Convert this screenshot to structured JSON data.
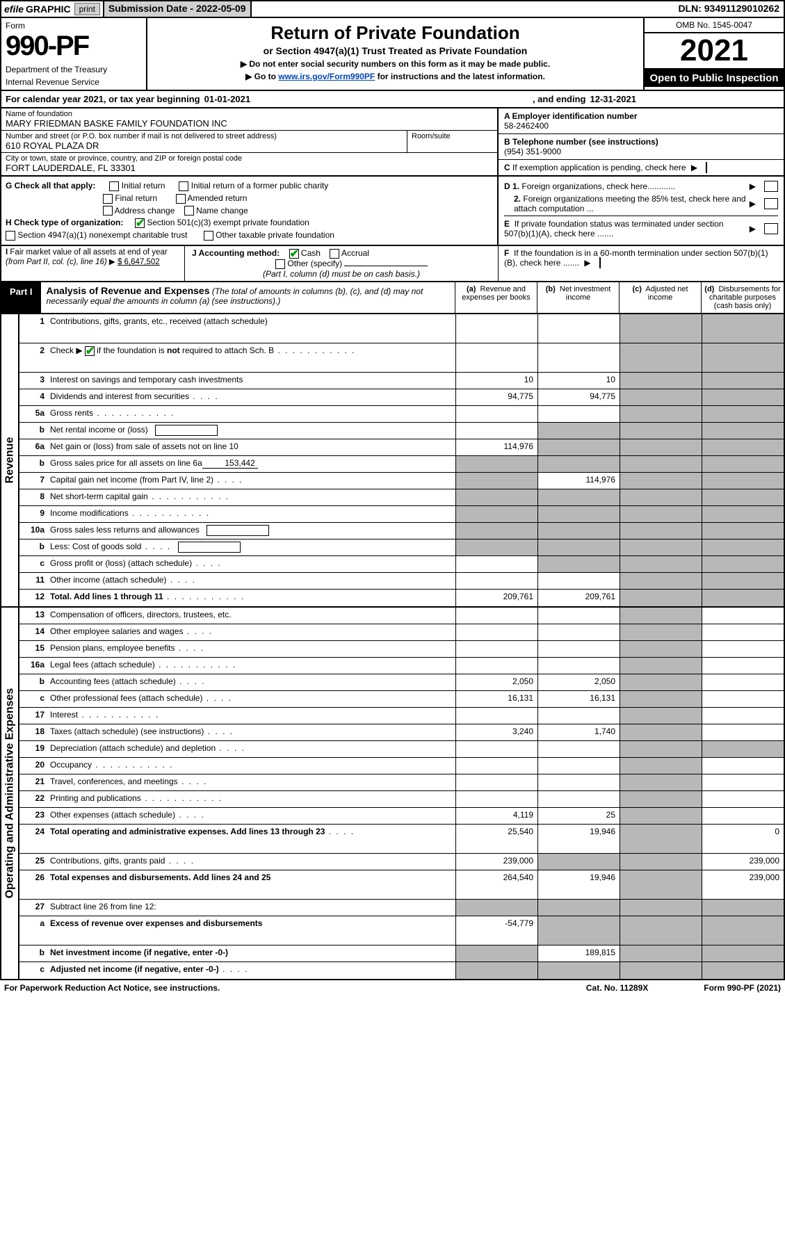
{
  "topbar": {
    "efile_label": "efile",
    "graphic_label": "GRAPHIC",
    "print_label": "print",
    "submission_label": "Submission Date - 2022-05-09",
    "dln": "DLN: 93491129010262"
  },
  "header": {
    "form_word": "Form",
    "form_number": "990-PF",
    "department": "Department of the Treasury",
    "irs_line": "Internal Revenue Service",
    "title_main": "Return of Private Foundation",
    "title_sub": "or Section 4947(a)(1) Trust Treated as Private Foundation",
    "instr1": "▶ Do not enter social security numbers on this form as it may be made public.",
    "instr2_pre": "▶ Go to ",
    "instr2_link": "www.irs.gov/Form990PF",
    "instr2_post": " for instructions and the latest information.",
    "omb": "OMB No. 1545-0047",
    "tax_year": "2021",
    "open_public": "Open to Public Inspection"
  },
  "calendar": {
    "prefix": "For calendar year 2021, or tax year beginning",
    "begin": "01-01-2021",
    "mid": ", and ending",
    "end": "12-31-2021"
  },
  "address": {
    "name_label": "Name of foundation",
    "name": "MARY FRIEDMAN BASKE FAMILY FOUNDATION INC",
    "street_label": "Number and street (or P.O. box number if mail is not delivered to street address)",
    "street": "610 ROYAL PLAZA DR",
    "room_label": "Room/suite",
    "city_label": "City or town, state or province, country, and ZIP or foreign postal code",
    "city": "FORT LAUDERDALE, FL  33301",
    "a_label": "A Employer identification number",
    "a_value": "58-2462400",
    "b_label": "B Telephone number (see instructions)",
    "b_value": "(954) 351-9000",
    "c_label": "C If exemption application is pending, check here"
  },
  "section_g": {
    "g_label": "G Check all that apply:",
    "g_opts": [
      "Initial return",
      "Initial return of a former public charity",
      "Final return",
      "Amended return",
      "Address change",
      "Name change"
    ],
    "h_label": "H Check type of organization:",
    "h_opt1": "Section 501(c)(3) exempt private foundation",
    "h_opt2": "Section 4947(a)(1) nonexempt charitable trust",
    "h_opt3": "Other taxable private foundation",
    "i_label": "I Fair market value of all assets at end of year (from Part II, col. (c), line 16) ▶",
    "i_value": "$  6,647,502",
    "j_label": "J Accounting method:",
    "j_opt1": "Cash",
    "j_opt2": "Accrual",
    "j_opt3": "Other (specify)",
    "j_note": "(Part I, column (d) must be on cash basis.)",
    "d1_label": "D 1. Foreign organizations, check here............",
    "d2_label": "2. Foreign organizations meeting the 85% test, check here and attach computation ...",
    "e_label": "E  If private foundation status was terminated under section 507(b)(1)(A), check here .......",
    "f_label": "F  If the foundation is in a 60-month termination under section 507(b)(1)(B), check here ......."
  },
  "part1": {
    "tag": "Part I",
    "title": "Analysis of Revenue and Expenses",
    "subtitle": " (The total of amounts in columns (b), (c), and (d) may not necessarily equal the amounts in column (a) (see instructions).)",
    "col_a": "(a)  Revenue and expenses per books",
    "col_b": "(b)  Net investment income",
    "col_c": "(c)  Adjusted net income",
    "col_d": "(d)  Disbursements for charitable purposes (cash basis only)"
  },
  "side_labels": {
    "revenue": "Revenue",
    "expenses": "Operating and Administrative Expenses"
  },
  "rows_revenue": [
    {
      "n": "1",
      "d": "Contributions, gifts, grants, etc., received (attach schedule)",
      "tall": true
    },
    {
      "n": "2",
      "d": "Check ▶ ☑ if the foundation is not required to attach Sch. B",
      "dots": true,
      "tall": true,
      "checkgreen": true,
      "notbold": true
    },
    {
      "n": "3",
      "d": "Interest on savings and temporary cash investments",
      "a": "10",
      "b": "10"
    },
    {
      "n": "4",
      "d": "Dividends and interest from securities",
      "dots": "short",
      "a": "94,775",
      "b": "94,775"
    },
    {
      "n": "5a",
      "d": "Gross rents",
      "dots": true
    },
    {
      "n": "b",
      "d": "Net rental income or (loss)",
      "input": true,
      "shade_bcd": true
    },
    {
      "n": "6a",
      "d": "Net gain or (loss) from sale of assets not on line 10",
      "a": "114,976",
      "shade_bcd": true
    },
    {
      "n": "b",
      "d": "Gross sales price for all assets on line 6a",
      "inline_val": "153,442",
      "shade_all": true
    },
    {
      "n": "7",
      "d": "Capital gain net income (from Part IV, line 2)",
      "dots": "short",
      "b": "114,976",
      "shade_a": true
    },
    {
      "n": "8",
      "d": "Net short-term capital gain",
      "dots": true,
      "shade_ab": true
    },
    {
      "n": "9",
      "d": "Income modifications",
      "dots": true,
      "shade_ab": true
    },
    {
      "n": "10a",
      "d": "Gross sales less returns and allowances",
      "input": true,
      "shade_all": true
    },
    {
      "n": "b",
      "d": "Less: Cost of goods sold",
      "dots": "short",
      "input": true,
      "shade_all": true
    },
    {
      "n": "c",
      "d": "Gross profit or (loss) (attach schedule)",
      "dots": "short",
      "shade_bc": true
    },
    {
      "n": "11",
      "d": "Other income (attach schedule)",
      "dots": "short"
    },
    {
      "n": "12",
      "d": "Total. Add lines 1 through 11",
      "dots": true,
      "bold": true,
      "a": "209,761",
      "b": "209,761"
    }
  ],
  "rows_expenses": [
    {
      "n": "13",
      "d": "Compensation of officers, directors, trustees, etc."
    },
    {
      "n": "14",
      "d": "Other employee salaries and wages",
      "dots": "short"
    },
    {
      "n": "15",
      "d": "Pension plans, employee benefits",
      "dots": "short"
    },
    {
      "n": "16a",
      "d": "Legal fees (attach schedule)",
      "dots": true
    },
    {
      "n": "b",
      "d": "Accounting fees (attach schedule)",
      "dots": "short",
      "a": "2,050",
      "b": "2,050"
    },
    {
      "n": "c",
      "d": "Other professional fees (attach schedule)",
      "dots": "short",
      "a": "16,131",
      "b": "16,131"
    },
    {
      "n": "17",
      "d": "Interest",
      "dots": true
    },
    {
      "n": "18",
      "d": "Taxes (attach schedule) (see instructions)",
      "dots": "short",
      "a": "3,240",
      "b": "1,740"
    },
    {
      "n": "19",
      "d": "Depreciation (attach schedule) and depletion",
      "dots": "short",
      "shade_d": true
    },
    {
      "n": "20",
      "d": "Occupancy",
      "dots": true
    },
    {
      "n": "21",
      "d": "Travel, conferences, and meetings",
      "dots": "short"
    },
    {
      "n": "22",
      "d": "Printing and publications",
      "dots": true
    },
    {
      "n": "23",
      "d": "Other expenses (attach schedule)",
      "dots": "short",
      "a": "4,119",
      "b": "25"
    },
    {
      "n": "24",
      "d": "Total operating and administrative expenses. Add lines 13 through 23",
      "dots": "short",
      "bold": true,
      "tall": true,
      "a": "25,540",
      "b": "19,946",
      "dd": "0"
    },
    {
      "n": "25",
      "d": "Contributions, gifts, grants paid",
      "dots": "short",
      "a": "239,000",
      "shade_bc": true,
      "dd": "239,000"
    },
    {
      "n": "26",
      "d": "Total expenses and disbursements. Add lines 24 and 25",
      "bold": true,
      "tall": true,
      "a": "264,540",
      "b": "19,946",
      "dd": "239,000"
    },
    {
      "n": "27",
      "d": "Subtract line 26 from line 12:",
      "shade_all_light": true
    },
    {
      "n": "a",
      "d": "Excess of revenue over expenses and disbursements",
      "bold": true,
      "a": "-54,779",
      "shade_bcd": true,
      "tall": true
    },
    {
      "n": "b",
      "d": "Net investment income (if negative, enter -0-)",
      "bold": true,
      "b": "189,815",
      "shade_acd": true
    },
    {
      "n": "c",
      "d": "Adjusted net income (if negative, enter -0-)",
      "bold": true,
      "dots": "short",
      "shade_abd": true
    }
  ],
  "footer": {
    "left": "For Paperwork Reduction Act Notice, see instructions.",
    "mid": "Cat. No. 11289X",
    "right": "Form 990-PF (2021)"
  },
  "colors": {
    "shade": "#b8b8b8",
    "link": "#0047b3",
    "check": "#00a000"
  }
}
